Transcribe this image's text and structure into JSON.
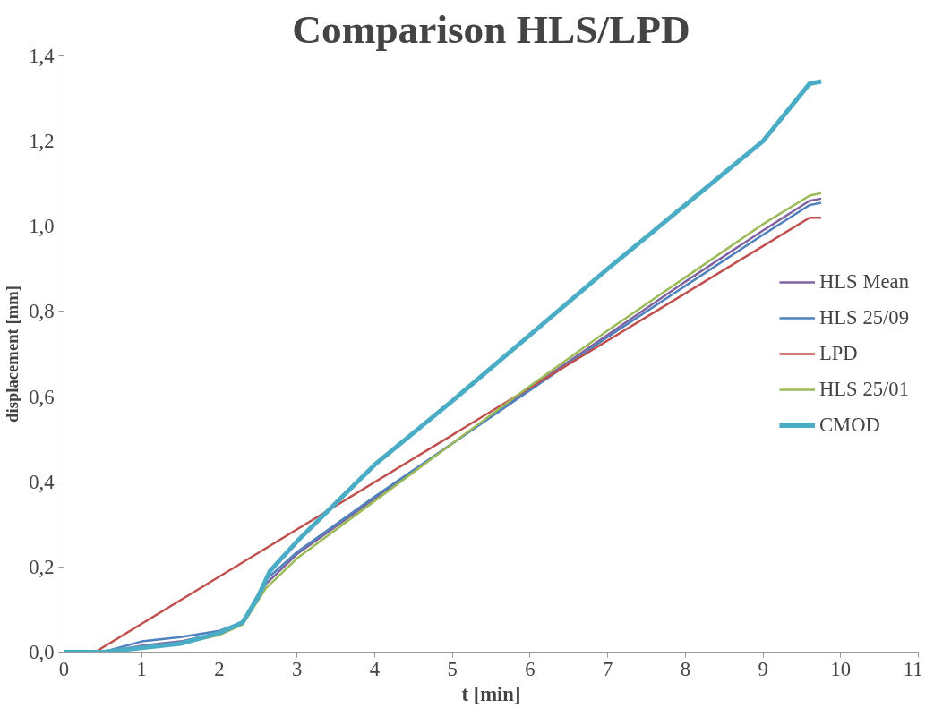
{
  "chart_data": {
    "type": "line",
    "title": "Comparison HLS/LPD",
    "xlabel": "t [min]",
    "ylabel": "displacement [mm]",
    "xlim": [
      0,
      11
    ],
    "xticks": [
      0,
      1,
      2,
      3,
      4,
      5,
      6,
      7,
      8,
      9,
      10,
      11
    ],
    "ylim": [
      0,
      1.4
    ],
    "yticks": [
      {
        "value": 0,
        "label": "0,0"
      },
      {
        "value": 0.2,
        "label": "0,2"
      },
      {
        "value": 0.4,
        "label": "0,4"
      },
      {
        "value": 0.6,
        "label": "0,6"
      },
      {
        "value": 0.8,
        "label": "0,8"
      },
      {
        "value": 1.0,
        "label": "1,0"
      },
      {
        "value": 1.2,
        "label": "1,2"
      },
      {
        "value": 1.4,
        "label": "1,4"
      }
    ],
    "grid": false,
    "legend": "right",
    "marker": "none",
    "line_style": "solid",
    "series": [
      {
        "name": "HLS Mean",
        "color": "#8064a2",
        "x": [
          0,
          0.5,
          1,
          1.5,
          2,
          2.3,
          2.6,
          3,
          4,
          5,
          6,
          7,
          8,
          9,
          9.6,
          9.75
        ],
        "values": [
          0,
          0,
          0.015,
          0.025,
          0.045,
          0.07,
          0.16,
          0.23,
          0.36,
          0.49,
          0.62,
          0.745,
          0.87,
          0.99,
          1.06,
          1.065
        ]
      },
      {
        "name": "HLS 25/09",
        "color": "#4f81bd",
        "x": [
          0,
          0.5,
          1,
          1.5,
          2,
          2.3,
          2.6,
          3,
          4,
          5,
          6,
          7,
          8,
          9,
          9.6,
          9.75
        ],
        "values": [
          0,
          0,
          0.025,
          0.035,
          0.05,
          0.07,
          0.17,
          0.235,
          0.365,
          0.49,
          0.615,
          0.74,
          0.86,
          0.98,
          1.05,
          1.055
        ]
      },
      {
        "name": "LPD",
        "color": "#c0504d",
        "x": [
          0,
          0.4,
          9.6,
          9.75
        ],
        "values": [
          0,
          0,
          1.02,
          1.02
        ]
      },
      {
        "name": "HLS 25/01",
        "color": "#9bbb59",
        "x": [
          1.5,
          2,
          2.3,
          2.6,
          3,
          4,
          5,
          6,
          7,
          8,
          9,
          9.6,
          9.75
        ],
        "values": [
          0.02,
          0.04,
          0.065,
          0.15,
          0.22,
          0.355,
          0.49,
          0.625,
          0.755,
          0.88,
          1.005,
          1.072,
          1.078
        ]
      },
      {
        "name": "CMOD",
        "color": "#4bacc6",
        "x": [
          0,
          0.5,
          1,
          1.5,
          2,
          2.3,
          2.5,
          2.65,
          3,
          3.5,
          4,
          5,
          6,
          7,
          8,
          9,
          9.6,
          9.75
        ],
        "values": [
          0,
          0,
          0.01,
          0.02,
          0.045,
          0.07,
          0.13,
          0.19,
          0.26,
          0.35,
          0.44,
          0.59,
          0.745,
          0.9,
          1.05,
          1.2,
          1.335,
          1.34
        ]
      }
    ]
  }
}
